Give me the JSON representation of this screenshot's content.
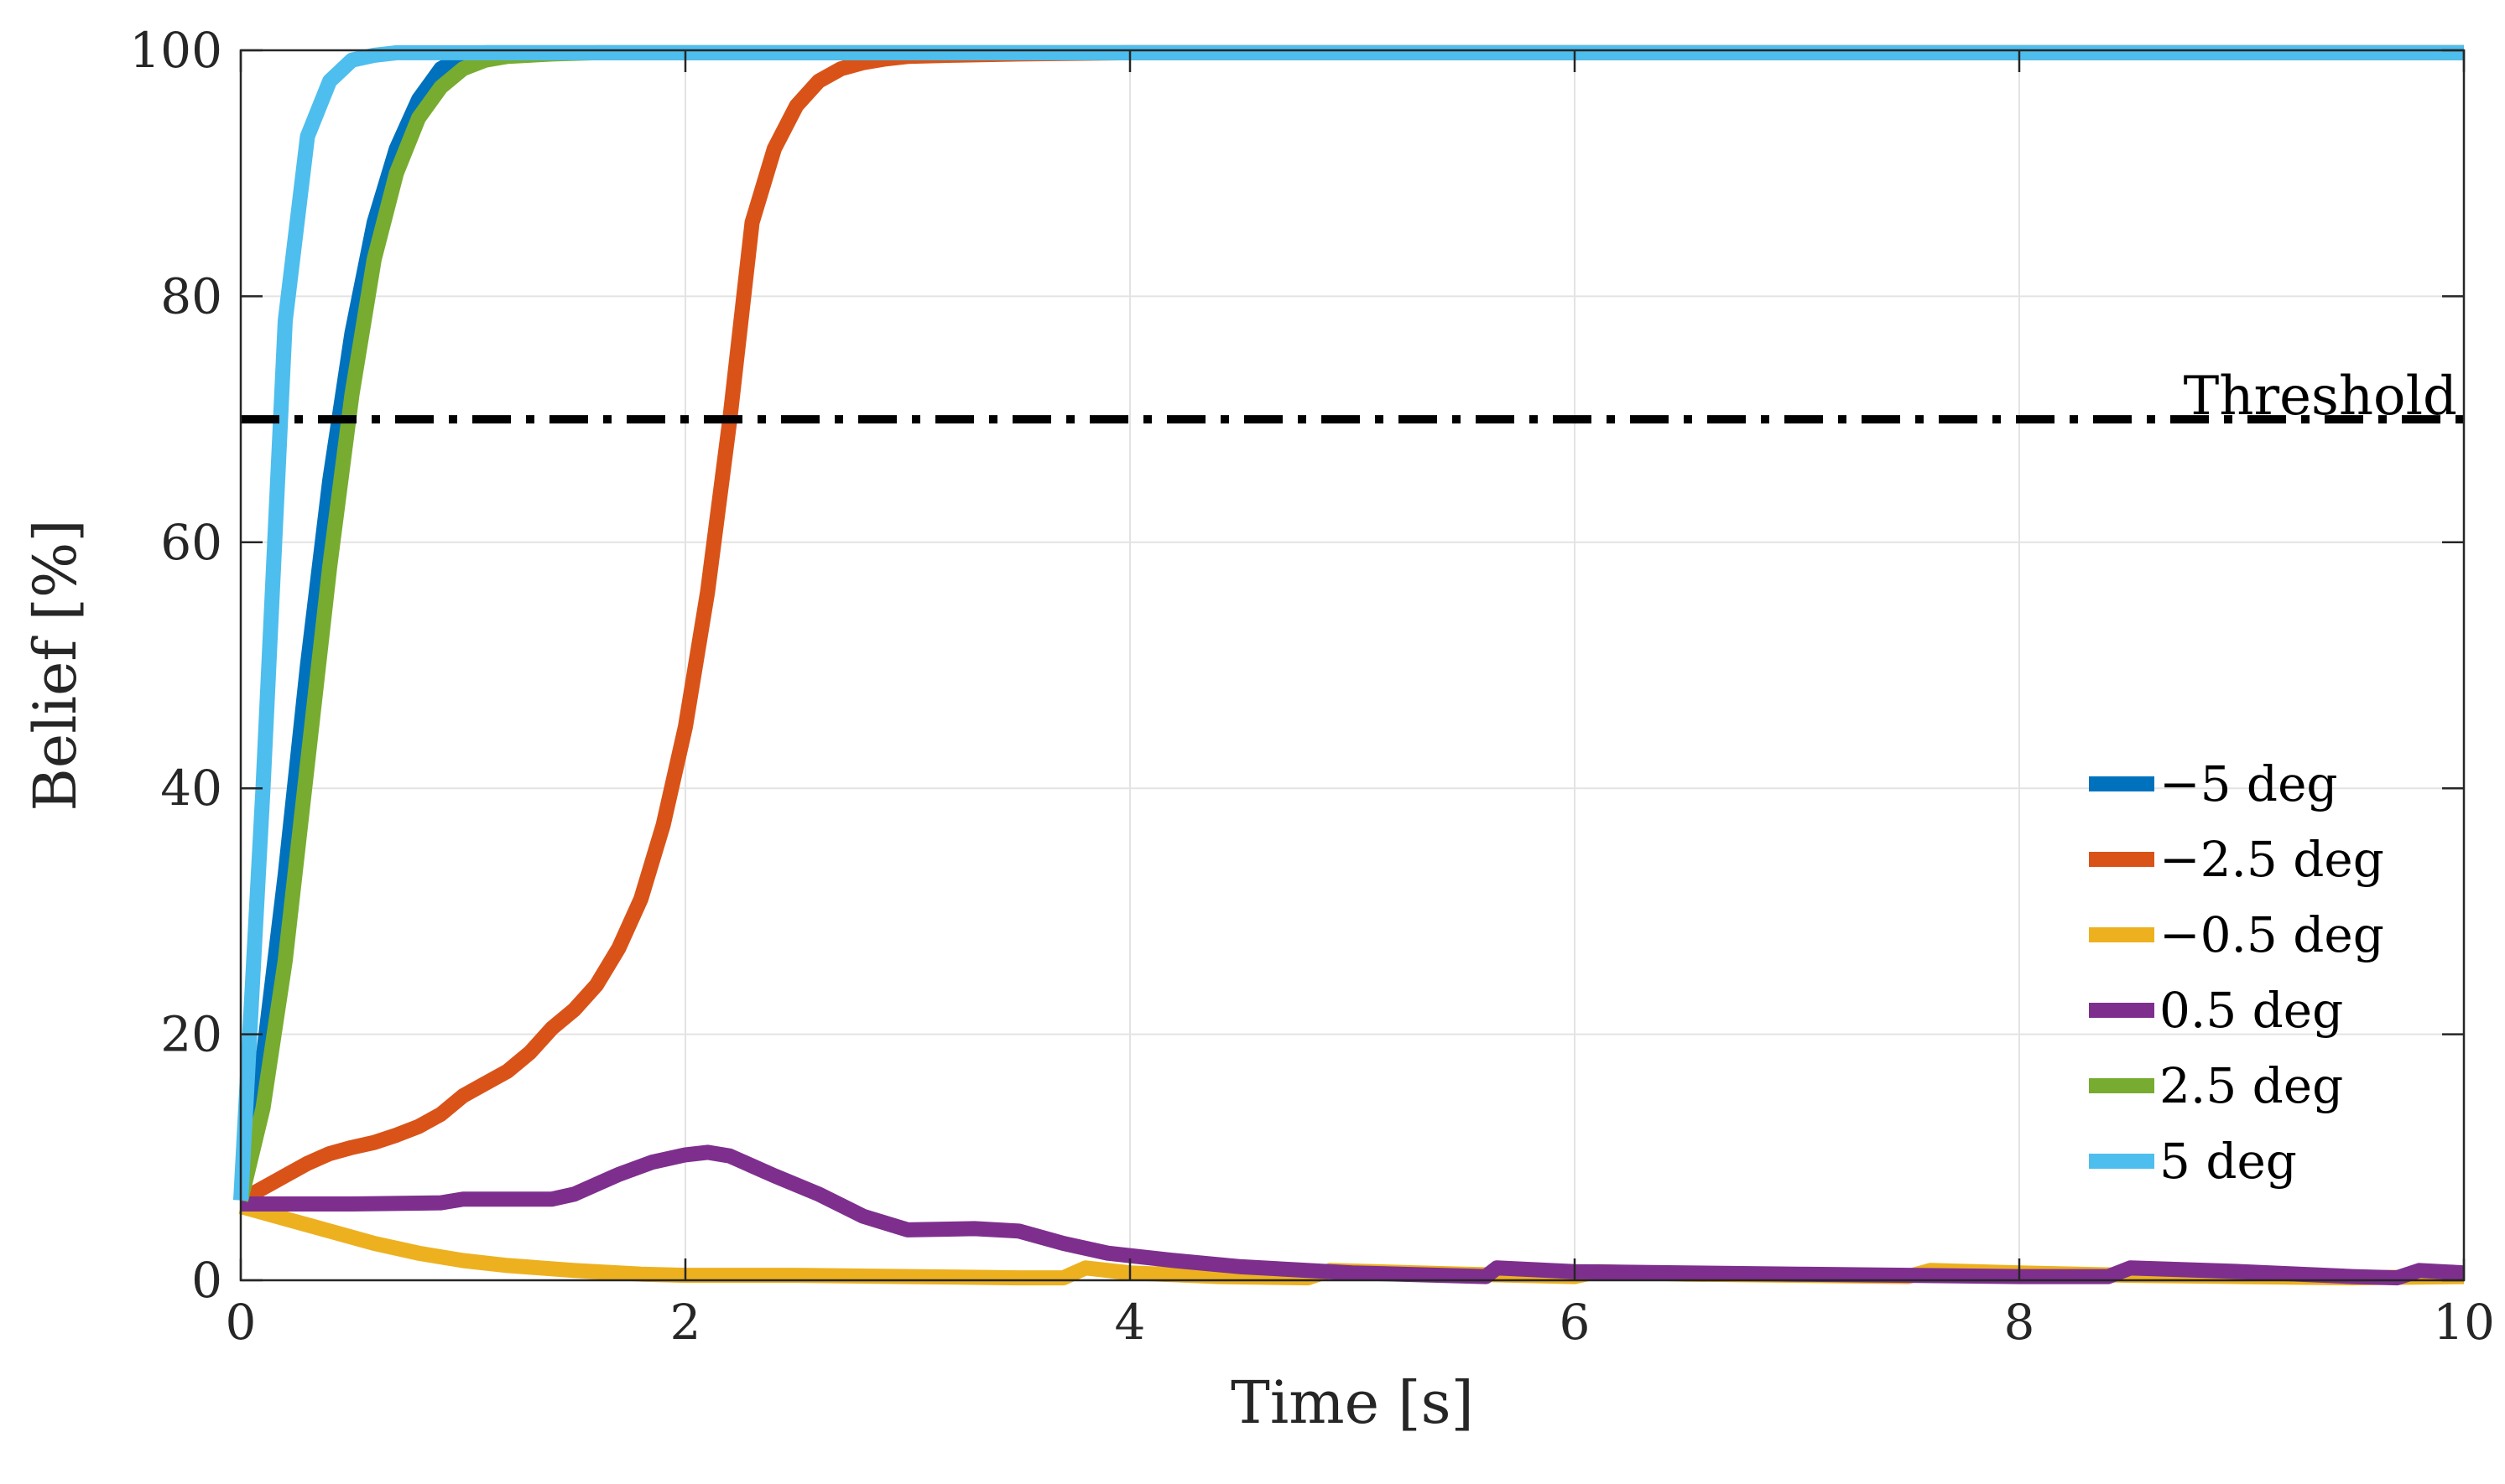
{
  "chart_data": {
    "type": "line",
    "title": "",
    "xlabel": "Time [s]",
    "ylabel": "Belief [%]",
    "xlim": [
      0,
      10
    ],
    "ylim": [
      0,
      100
    ],
    "xticks": [
      0,
      2,
      4,
      6,
      8,
      10
    ],
    "yticks": [
      0,
      20,
      40,
      60,
      80,
      100
    ],
    "grid": true,
    "legend_position": "right",
    "threshold": {
      "label": "Threshold",
      "value": 70,
      "color": "#000000",
      "style": "dash-dot"
    },
    "series": [
      {
        "name": "−5 deg",
        "color": "#0072BD",
        "x": [
          0,
          0.1,
          0.2,
          0.3,
          0.4,
          0.5,
          0.6,
          0.7,
          0.8,
          0.9,
          1.0,
          1.1,
          1.2,
          10
        ],
        "y": [
          6.5,
          18,
          33,
          50,
          65,
          77,
          86,
          92,
          96,
          98.5,
          99.5,
          99.8,
          99.8,
          99.8
        ]
      },
      {
        "name": "−2.5 deg",
        "color": "#D95319",
        "x": [
          0,
          0.1,
          0.2,
          0.3,
          0.4,
          0.5,
          0.6,
          0.7,
          0.8,
          0.9,
          1.0,
          1.1,
          1.2,
          1.3,
          1.4,
          1.5,
          1.6,
          1.7,
          1.8,
          1.9,
          2.0,
          2.1,
          2.2,
          2.3,
          2.4,
          2.5,
          2.6,
          2.7,
          2.8,
          2.9,
          3.0,
          3.2,
          3.5,
          4.0,
          5.0,
          10
        ],
        "y": [
          6.5,
          7.5,
          8.5,
          9.5,
          10.3,
          10.8,
          11.2,
          11.8,
          12.5,
          13.5,
          15,
          16,
          17,
          18.5,
          20.5,
          22,
          24,
          27,
          31,
          37,
          45,
          56,
          70,
          86,
          92,
          95.5,
          97.5,
          98.5,
          99,
          99.3,
          99.5,
          99.6,
          99.7,
          99.8,
          99.8,
          99.8
        ]
      },
      {
        "name": "−0.5 deg",
        "color": "#EDB120",
        "x": [
          0,
          0.2,
          0.4,
          0.6,
          0.8,
          1.0,
          1.2,
          1.5,
          1.8,
          2.0,
          2.5,
          3.0,
          3.5,
          3.7,
          3.8,
          4.0,
          4.4,
          4.8,
          4.9,
          5.5,
          6.0,
          6.1,
          6.5,
          7.0,
          7.5,
          7.6,
          8.0,
          8.5,
          9.0,
          9.5,
          10
        ],
        "y": [
          6,
          5,
          4,
          3,
          2.2,
          1.6,
          1.2,
          0.8,
          0.5,
          0.4,
          0.4,
          0.3,
          0.2,
          0.2,
          1.0,
          0.6,
          0.3,
          0.2,
          0.8,
          0.5,
          0.3,
          0.7,
          0.5,
          0.4,
          0.3,
          0.8,
          0.6,
          0.4,
          0.3,
          0.2,
          0.3
        ]
      },
      {
        "name": "0.5 deg",
        "color": "#7E2F8E",
        "x": [
          0,
          0.5,
          0.9,
          1.0,
          1.4,
          1.5,
          1.7,
          1.85,
          2.0,
          2.1,
          2.2,
          2.4,
          2.6,
          2.8,
          3.0,
          3.3,
          3.5,
          3.7,
          3.9,
          4.2,
          4.5,
          5.0,
          5.6,
          5.65,
          6.0,
          6.5,
          7.0,
          8.0,
          8.4,
          8.5,
          9.0,
          9.5,
          9.7,
          9.8,
          10
        ],
        "y": [
          6.2,
          6.2,
          6.3,
          6.6,
          6.6,
          7.0,
          8.6,
          9.6,
          10.2,
          10.4,
          10.1,
          8.5,
          7.0,
          5.2,
          4.1,
          4.2,
          4.0,
          3.0,
          2.2,
          1.6,
          1.1,
          0.6,
          0.3,
          1.0,
          0.7,
          0.6,
          0.5,
          0.3,
          0.3,
          1.0,
          0.7,
          0.3,
          0.2,
          0.8,
          0.6
        ]
      },
      {
        "name": "2.5 deg",
        "color": "#77AC30",
        "x": [
          0,
          0.1,
          0.2,
          0.3,
          0.4,
          0.5,
          0.6,
          0.7,
          0.8,
          0.9,
          1.0,
          1.1,
          1.2,
          1.4,
          1.6,
          10
        ],
        "y": [
          6.5,
          14,
          26,
          42,
          58,
          72,
          83,
          90,
          94.5,
          97,
          98.5,
          99.2,
          99.5,
          99.7,
          99.8,
          99.8
        ]
      },
      {
        "name": "5 deg",
        "color": "#4DBEEE",
        "x": [
          0,
          0.1,
          0.2,
          0.3,
          0.4,
          0.5,
          0.6,
          0.7,
          0.8,
          1.0,
          10
        ],
        "y": [
          6.5,
          40,
          78,
          93,
          97.5,
          99.2,
          99.6,
          99.8,
          99.8,
          99.8,
          99.8
        ]
      }
    ]
  }
}
